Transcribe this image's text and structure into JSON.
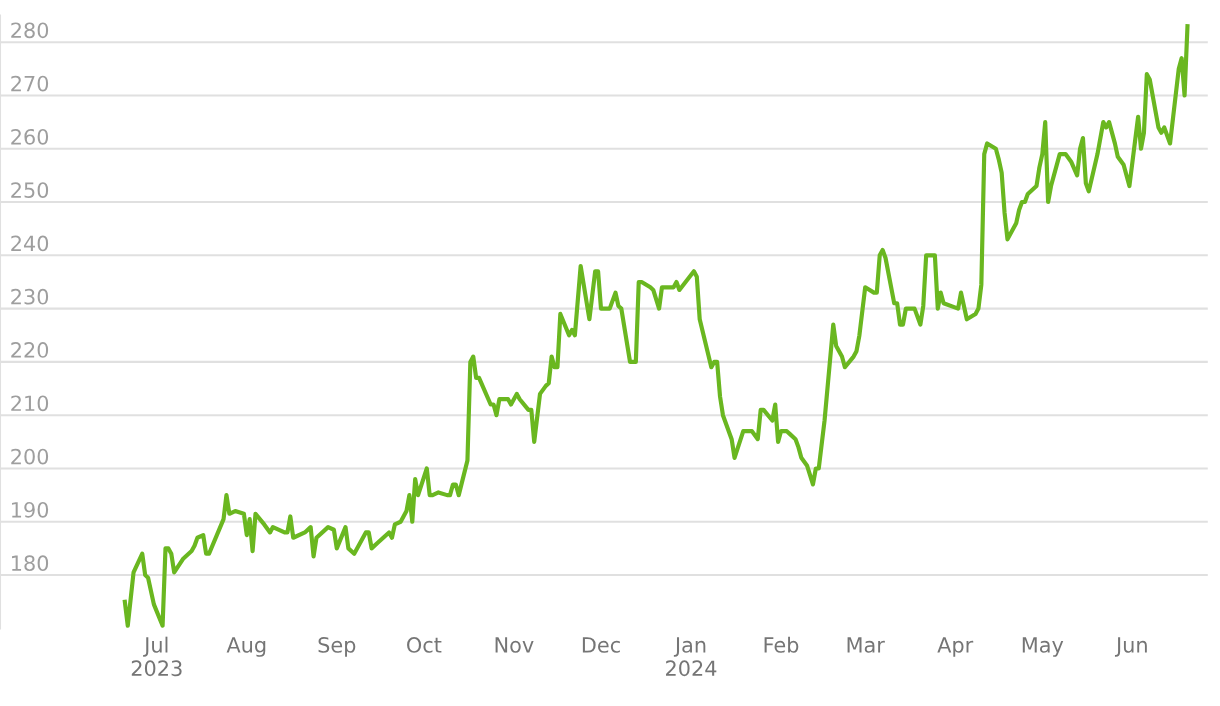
{
  "chart_data": {
    "type": "line",
    "grid": "y",
    "marker": "none",
    "line_style": "solid",
    "xlim": [
      "2023-05-08",
      "2024-06-27"
    ],
    "ylim": [
      170,
      285
    ],
    "yticks": [
      180,
      190,
      200,
      210,
      220,
      230,
      240,
      250,
      260,
      270,
      280
    ],
    "xticks": [
      {
        "value": "2023-07-01",
        "label": "Jul\n2023"
      },
      {
        "value": "2023-08-01",
        "label": "Aug"
      },
      {
        "value": "2023-09-01",
        "label": "Sep"
      },
      {
        "value": "2023-10-01",
        "label": "Oct"
      },
      {
        "value": "2023-11-01",
        "label": "Nov"
      },
      {
        "value": "2023-12-01",
        "label": "Dec"
      },
      {
        "value": "2024-01-01",
        "label": "Jan\n2024"
      },
      {
        "value": "2024-02-01",
        "label": "Feb"
      },
      {
        "value": "2024-03-01",
        "label": "Mar"
      },
      {
        "value": "2024-04-01",
        "label": "Apr"
      },
      {
        "value": "2024-05-01",
        "label": "May"
      },
      {
        "value": "2024-06-01",
        "label": "Jun"
      }
    ],
    "series": [
      {
        "color": "#6ab720",
        "x": [
          "2023-06-20",
          "2023-06-21",
          "2023-06-23",
          "2023-06-26",
          "2023-06-27",
          "2023-06-28",
          "2023-06-30",
          "2023-07-03",
          "2023-07-04",
          "2023-07-05",
          "2023-07-06",
          "2023-07-07",
          "2023-07-10",
          "2023-07-13",
          "2023-07-14",
          "2023-07-15",
          "2023-07-17",
          "2023-07-18",
          "2023-07-19",
          "2023-07-24",
          "2023-07-25",
          "2023-07-26",
          "2023-07-28",
          "2023-07-31",
          "2023-08-01",
          "2023-08-02",
          "2023-08-03",
          "2023-08-04",
          "2023-08-07",
          "2023-08-09",
          "2023-08-10",
          "2023-08-14",
          "2023-08-15",
          "2023-08-16",
          "2023-08-17",
          "2023-08-21",
          "2023-08-23",
          "2023-08-24",
          "2023-08-25",
          "2023-08-29",
          "2023-08-31",
          "2023-09-01",
          "2023-09-04",
          "2023-09-05",
          "2023-09-07",
          "2023-09-11",
          "2023-09-12",
          "2023-09-13",
          "2023-09-15",
          "2023-09-19",
          "2023-09-20",
          "2023-09-21",
          "2023-09-23",
          "2023-09-25",
          "2023-09-26",
          "2023-09-27",
          "2023-09-28",
          "2023-09-29",
          "2023-10-02",
          "2023-10-03",
          "2023-10-04",
          "2023-10-06",
          "2023-10-09",
          "2023-10-10",
          "2023-10-11",
          "2023-10-12",
          "2023-10-13",
          "2023-10-16",
          "2023-10-17",
          "2023-10-18",
          "2023-10-19",
          "2023-10-20",
          "2023-10-24",
          "2023-10-25",
          "2023-10-26",
          "2023-10-27",
          "2023-10-30",
          "2023-10-31",
          "2023-11-02",
          "2023-11-03",
          "2023-11-06",
          "2023-11-07",
          "2023-11-08",
          "2023-11-10",
          "2023-11-12",
          "2023-11-13",
          "2023-11-14",
          "2023-11-15",
          "2023-11-16",
          "2023-11-17",
          "2023-11-20",
          "2023-11-21",
          "2023-11-22",
          "2023-11-24",
          "2023-11-27",
          "2023-11-29",
          "2023-11-30",
          "2023-12-01",
          "2023-12-04",
          "2023-12-06",
          "2023-12-07",
          "2023-12-08",
          "2023-12-11",
          "2023-12-13",
          "2023-12-14",
          "2023-12-15",
          "2023-12-18",
          "2023-12-19",
          "2023-12-21",
          "2023-12-22",
          "2023-12-26",
          "2023-12-27",
          "2023-12-28",
          "2024-01-02",
          "2024-01-03",
          "2024-01-04",
          "2024-01-08",
          "2024-01-09",
          "2024-01-10",
          "2024-01-11",
          "2024-01-12",
          "2024-01-15",
          "2024-01-16",
          "2024-01-19",
          "2024-01-22",
          "2024-01-24",
          "2024-01-25",
          "2024-01-26",
          "2024-01-29",
          "2024-01-30",
          "2024-01-31",
          "2024-02-01",
          "2024-02-03",
          "2024-02-04",
          "2024-02-06",
          "2024-02-07",
          "2024-02-08",
          "2024-02-10",
          "2024-02-12",
          "2024-02-13",
          "2024-02-14",
          "2024-02-16",
          "2024-02-19",
          "2024-02-20",
          "2024-02-22",
          "2024-02-23",
          "2024-02-26",
          "2024-02-27",
          "2024-02-28",
          "2024-03-01",
          "2024-03-04",
          "2024-03-05",
          "2024-03-06",
          "2024-03-07",
          "2024-03-08",
          "2024-03-11",
          "2024-03-12",
          "2024-03-13",
          "2024-03-14",
          "2024-03-15",
          "2024-03-18",
          "2024-03-20",
          "2024-03-21",
          "2024-03-22",
          "2024-03-25",
          "2024-03-26",
          "2024-03-27",
          "2024-03-28",
          "2024-04-02",
          "2024-04-03",
          "2024-04-05",
          "2024-04-08",
          "2024-04-09",
          "2024-04-10",
          "2024-04-11",
          "2024-04-12",
          "2024-04-15",
          "2024-04-16",
          "2024-04-17",
          "2024-04-18",
          "2024-04-19",
          "2024-04-22",
          "2024-04-23",
          "2024-04-24",
          "2024-04-25",
          "2024-04-26",
          "2024-04-29",
          "2024-04-30",
          "2024-05-01",
          "2024-05-02",
          "2024-05-03",
          "2024-05-04",
          "2024-05-07",
          "2024-05-09",
          "2024-05-11",
          "2024-05-13",
          "2024-05-14",
          "2024-05-15",
          "2024-05-16",
          "2024-05-17",
          "2024-05-20",
          "2024-05-22",
          "2024-05-23",
          "2024-05-24",
          "2024-05-26",
          "2024-05-27",
          "2024-05-29",
          "2024-05-31",
          "2024-06-03",
          "2024-06-04",
          "2024-06-05",
          "2024-06-06",
          "2024-06-07",
          "2024-06-10",
          "2024-06-11",
          "2024-06-12",
          "2024-06-14",
          "2024-06-17",
          "2024-06-18",
          "2024-06-19",
          "2024-06-20"
        ],
        "values": [
          175,
          170.5,
          180.5,
          184,
          180,
          179.5,
          174.5,
          170.5,
          185,
          185,
          184,
          180.5,
          183,
          184.5,
          185.5,
          187,
          187.5,
          184,
          184,
          190.5,
          195,
          191.5,
          192,
          191.5,
          187.5,
          190.5,
          184.5,
          191.5,
          189.5,
          188,
          189,
          188,
          188,
          191,
          187,
          188,
          189,
          183.5,
          187,
          189,
          188.5,
          185,
          189,
          185,
          184,
          188,
          188,
          185,
          186,
          188,
          187,
          189.5,
          190,
          192,
          195,
          190,
          198,
          195,
          200,
          195,
          195,
          195.5,
          195,
          195,
          197,
          197,
          195,
          201.5,
          220,
          221,
          217,
          217,
          212,
          212,
          210,
          213,
          213,
          212,
          214,
          213,
          211,
          211,
          205,
          214,
          215.5,
          216,
          221,
          219,
          219,
          229,
          225,
          226,
          225,
          238,
          228,
          237,
          237,
          230,
          230,
          233,
          230.5,
          230,
          220,
          220,
          235,
          235,
          234,
          233.5,
          230,
          234,
          234,
          235,
          233.5,
          237,
          236,
          228,
          219,
          220,
          220,
          213.5,
          210,
          205.5,
          202,
          207,
          207,
          205.5,
          211,
          211,
          209,
          212,
          205,
          207,
          207,
          206.5,
          205.5,
          204,
          202,
          200.5,
          197,
          200,
          200,
          209,
          227,
          223,
          221,
          219,
          221,
          222,
          225,
          234,
          233,
          233,
          240,
          241,
          239.5,
          231,
          231,
          227,
          227,
          230,
          230,
          227,
          230.5,
          240,
          240,
          230,
          233,
          231,
          230,
          233,
          228,
          229,
          230,
          234.5,
          259,
          261,
          260,
          258,
          255.5,
          248,
          243,
          246,
          248.5,
          250,
          250,
          251.5,
          253,
          256.5,
          259,
          265,
          250,
          253,
          259,
          259,
          257.5,
          255,
          260,
          262,
          253.5,
          252,
          259,
          265,
          264,
          265,
          261,
          258.5,
          257,
          253,
          266,
          260,
          263,
          274,
          273,
          264,
          263,
          264,
          261,
          275,
          277,
          270,
          283
        ]
      }
    ]
  }
}
